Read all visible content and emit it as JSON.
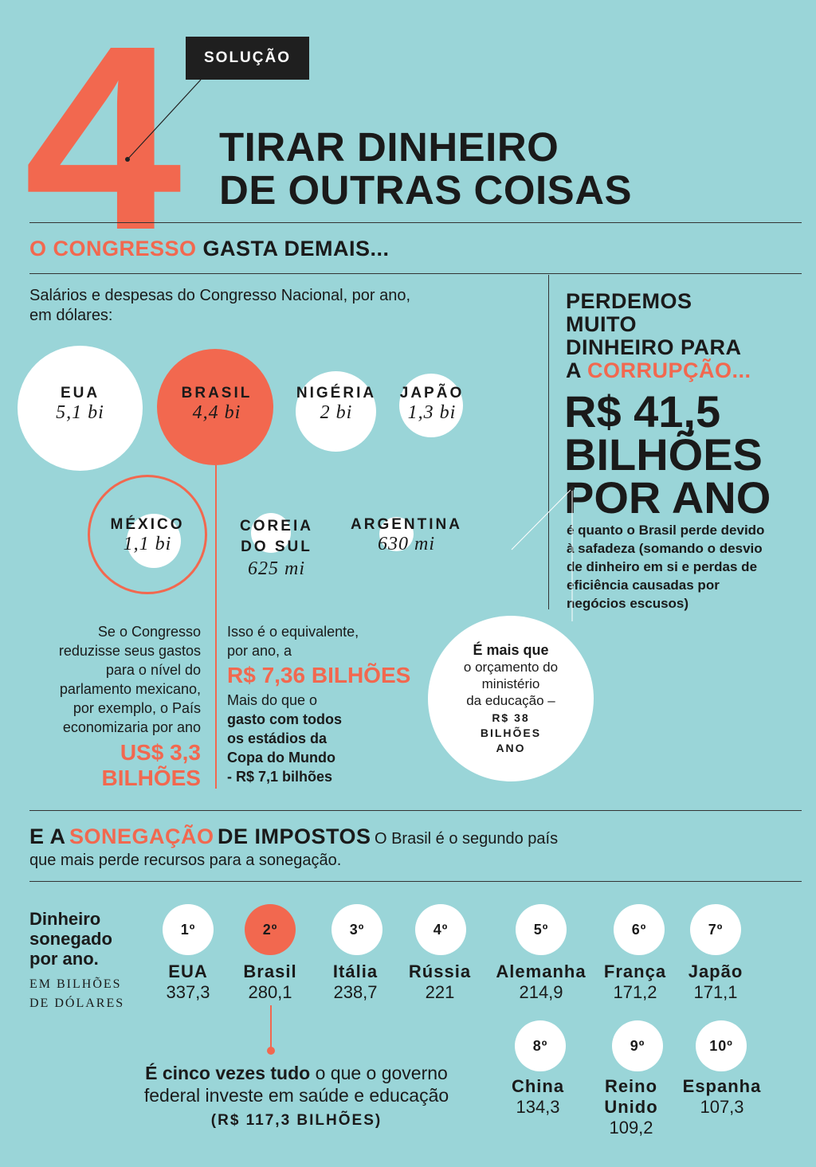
{
  "header": {
    "number": "4",
    "badge": "SOLUÇÃO",
    "title_line1": "TIRAR DINHEIRO",
    "title_line2": "DE OUTRAS COISAS"
  },
  "congress": {
    "title_highlight": "O CONGRESSO",
    "title_rest": "GASTA DEMAIS...",
    "subtitle": "Salários e despesas do Congresso Nacional, por ano, em dólares:",
    "countries": [
      {
        "label": "EUA",
        "value": "5,1 bi"
      },
      {
        "label": "BRASIL",
        "value": "4,4 bi"
      },
      {
        "label": "NIGÉRIA",
        "value": "2 bi"
      },
      {
        "label": "JAPÃO",
        "value": "1,3 bi"
      },
      {
        "label": "MÉXICO",
        "value": "1,1 bi"
      },
      {
        "label_line1": "COREIA",
        "label_line2": "DO SUL",
        "value": "625 mi"
      },
      {
        "label": "ARGENTINA",
        "value": "630 mi"
      }
    ],
    "mexico_text": [
      "Se o Congresso",
      "reduzisse seus gastos",
      "para o nível do",
      "parlamento mexicano,",
      "por exemplo, o País",
      "economizaria por ano"
    ],
    "mexico_amount_line1": "US$ 3,3",
    "mexico_amount_line2": "BILHÕES",
    "brasil_text_line1": "Isso é o equivalente,",
    "brasil_text_line2": "por ano, a",
    "brasil_amount": "R$ 7,36 BILHÕES",
    "brasil_compare_line1": "Mais do que o",
    "brasil_compare_bold": [
      "gasto com todos",
      "os estádios da",
      "Copa do Mundo",
      "- R$ 7,1 bilhões"
    ]
  },
  "corruption": {
    "title_lines": [
      "PERDEMOS",
      "MUITO",
      "DINHEIRO PARA"
    ],
    "title_prefix": "A",
    "title_highlight": "CORRUPÇÃO...",
    "amount_lines": [
      "R$ 41,5",
      "BILHÕES",
      "POR ANO"
    ],
    "desc_lines": [
      "é quanto o Brasil perde devido",
      "à safadeza (somando o desvio",
      "de dinheiro em si e perdas de",
      "eficiência causadas por",
      "negócios escusos)"
    ],
    "bubble_bold": "É mais que",
    "bubble_lines": [
      "o orçamento do",
      "ministério",
      "da educação –"
    ],
    "bubble_amount_lines": [
      "R$ 38",
      "BILHÕES",
      "ANO"
    ]
  },
  "tax": {
    "title_prefix": "E A",
    "title_highlight": "SONEGAÇÃO",
    "title_rest": "DE IMPOSTOS",
    "desc_line1": "O Brasil é o segundo país",
    "desc_line2": "que mais perde recursos para a sonegação.",
    "side_label_lines": [
      "Dinheiro",
      "sonegado",
      "por ano."
    ],
    "side_unit_lines": [
      "EM BILHÕES",
      "DE DÓLARES"
    ],
    "ranking": [
      {
        "rank": "1º",
        "country": "EUA",
        "value": "337,3"
      },
      {
        "rank": "2º",
        "country": "Brasil",
        "value": "280,1"
      },
      {
        "rank": "3º",
        "country": "Itália",
        "value": "238,7"
      },
      {
        "rank": "4º",
        "country": "Rússia",
        "value": "221"
      },
      {
        "rank": "5º",
        "country": "Alemanha",
        "value": "214,9"
      },
      {
        "rank": "6º",
        "country": "França",
        "value": "171,2"
      },
      {
        "rank": "7º",
        "country": "Japão",
        "value": "171,1"
      },
      {
        "rank": "8º",
        "country": "China",
        "value": "134,3"
      },
      {
        "rank": "9º",
        "country_line1": "Reino",
        "country_line2": "Unido",
        "value": "109,2"
      },
      {
        "rank": "10º",
        "country": "Espanha",
        "value": "107,3"
      }
    ],
    "note_bold": "É cinco vezes tudo",
    "note_rest": "o que o governo",
    "note_line2": "federal investe em saúde e educação",
    "note_amount": "(R$ 117,3 BILHÕES)"
  },
  "colors": {
    "background": "#9ad5d8",
    "accent": "#f2684f",
    "dark": "#1f1f1f"
  }
}
